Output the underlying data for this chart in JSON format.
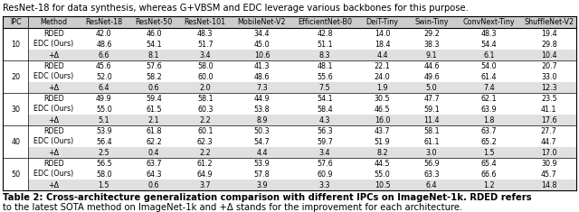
{
  "header_text": "ResNet-18 for data synthesis, whereas G+VBSM and EDC leverage various backbones for this purpose.",
  "caption_bold": "Table 2: ",
  "caption_bold_part": "Cross-architecture generalization comparison with different IPCs on ImageNet-1k.",
  "caption_normal": " RDED refers\nto the latest SOTA method on ImageNet-1k and +Δ stands for the improvement for each architecture.",
  "columns": [
    "IPC",
    "Method",
    "ResNet-18",
    "ResNet-50",
    "ResNet-101",
    "MobileNet-V2",
    "EfficientNet-B0",
    "DeiT-Tiny",
    "Swin-Tiny",
    "ConvNext-Tiny",
    "ShuffleNet-V2"
  ],
  "ipc_groups": [
    10,
    20,
    30,
    40,
    50
  ],
  "rows": [
    {
      "ipc": 10,
      "method": "RDED",
      "vals": [
        "42.0",
        "46.0",
        "48.3",
        "34.4",
        "42.8",
        "14.0",
        "29.2",
        "48.3",
        "19.4"
      ]
    },
    {
      "ipc": 10,
      "method": "EDC (Ours)",
      "vals": [
        "48.6",
        "54.1",
        "51.7",
        "45.0",
        "51.1",
        "18.4",
        "38.3",
        "54.4",
        "29.8"
      ]
    },
    {
      "ipc": 10,
      "method": "+Δ",
      "vals": [
        "6.6",
        "8.1",
        "3.4",
        "10.6",
        "8.3",
        "4.4",
        "9.1",
        "6.1",
        "10.4"
      ]
    },
    {
      "ipc": 20,
      "method": "RDED",
      "vals": [
        "45.6",
        "57.6",
        "58.0",
        "41.3",
        "48.1",
        "22.1",
        "44.6",
        "54.0",
        "20.7"
      ]
    },
    {
      "ipc": 20,
      "method": "EDC (Ours)",
      "vals": [
        "52.0",
        "58.2",
        "60.0",
        "48.6",
        "55.6",
        "24.0",
        "49.6",
        "61.4",
        "33.0"
      ]
    },
    {
      "ipc": 20,
      "method": "+Δ",
      "vals": [
        "6.4",
        "0.6",
        "2.0",
        "7.3",
        "7.5",
        "1.9",
        "5.0",
        "7.4",
        "12.3"
      ]
    },
    {
      "ipc": 30,
      "method": "RDED",
      "vals": [
        "49.9",
        "59.4",
        "58.1",
        "44.9",
        "54.1",
        "30.5",
        "47.7",
        "62.1",
        "23.5"
      ]
    },
    {
      "ipc": 30,
      "method": "EDC (Ours)",
      "vals": [
        "55.0",
        "61.5",
        "60.3",
        "53.8",
        "58.4",
        "46.5",
        "59.1",
        "63.9",
        "41.1"
      ]
    },
    {
      "ipc": 30,
      "method": "+Δ",
      "vals": [
        "5.1",
        "2.1",
        "2.2",
        "8.9",
        "4.3",
        "16.0",
        "11.4",
        "1.8",
        "17.6"
      ]
    },
    {
      "ipc": 40,
      "method": "RDED",
      "vals": [
        "53.9",
        "61.8",
        "60.1",
        "50.3",
        "56.3",
        "43.7",
        "58.1",
        "63.7",
        "27.7"
      ]
    },
    {
      "ipc": 40,
      "method": "EDC (Ours)",
      "vals": [
        "56.4",
        "62.2",
        "62.3",
        "54.7",
        "59.7",
        "51.9",
        "61.1",
        "65.2",
        "44.7"
      ]
    },
    {
      "ipc": 40,
      "method": "+Δ",
      "vals": [
        "2.5",
        "0.4",
        "2.2",
        "4.4",
        "3.4",
        "8.2",
        "3.0",
        "1.5",
        "17.0"
      ]
    },
    {
      "ipc": 50,
      "method": "RDED",
      "vals": [
        "56.5",
        "63.7",
        "61.2",
        "53.9",
        "57.6",
        "44.5",
        "56.9",
        "65.4",
        "30.9"
      ]
    },
    {
      "ipc": 50,
      "method": "EDC (Ours)",
      "vals": [
        "58.0",
        "64.3",
        "64.9",
        "57.8",
        "60.9",
        "55.0",
        "63.3",
        "66.6",
        "45.7"
      ]
    },
    {
      "ipc": 50,
      "method": "+Δ",
      "vals": [
        "1.5",
        "0.6",
        "3.7",
        "3.9",
        "3.3",
        "10.5",
        "6.4",
        "1.2",
        "14.8"
      ]
    }
  ],
  "bg_color_header": "#cccccc",
  "bg_color_delta": "#e0e0e0",
  "bg_color_white": "#ffffff",
  "text_color": "#000000",
  "font_size": 5.8,
  "caption_font_size": 7.2,
  "header_font_size": 7.2
}
